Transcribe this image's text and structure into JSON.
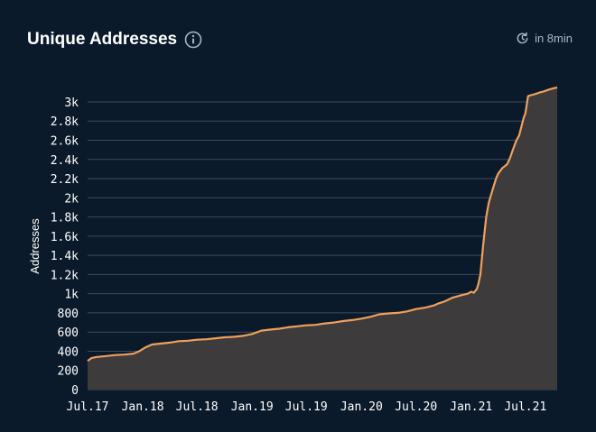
{
  "header": {
    "title": "Unique Addresses",
    "refresh_text": "in 8min"
  },
  "icons": {
    "info": "info-icon",
    "refresh": "refresh-clock-icon"
  },
  "colors": {
    "background": "#0b1a2b",
    "line": "#f0a05c",
    "fill": "#3d3b3b",
    "grid": "#3c4a5c",
    "text": "#ffffff",
    "muted": "#a9b4c2"
  },
  "chart_data": {
    "type": "area",
    "title": "",
    "xlabel": "",
    "ylabel": "Addresses",
    "ylim": [
      0,
      3000
    ],
    "yticks": [
      0,
      200,
      400,
      600,
      800,
      1000,
      1200,
      1400,
      1600,
      1800,
      2000,
      2200,
      2400,
      2600,
      2800,
      3000
    ],
    "ytick_labels": [
      "0",
      "200",
      "400",
      "600",
      "800",
      "1k",
      "1.2k",
      "1.4k",
      "1.6k",
      "1.8k",
      "2k",
      "2.2k",
      "2.4k",
      "2.6k",
      "2.8k",
      "3k"
    ],
    "xticks": [
      "2017-07-01",
      "2018-01-01",
      "2018-07-01",
      "2019-01-01",
      "2019-07-01",
      "2020-01-01",
      "2020-07-01",
      "2021-01-01",
      "2021-07-01"
    ],
    "xtick_labels": [
      "Jul.17",
      "Jan.18",
      "Jul.18",
      "Jan.19",
      "Jul.19",
      "Jan.20",
      "Jul.20",
      "Jan.21",
      "Jul.21"
    ],
    "xlim": [
      "2017-07-01",
      "2021-10-15"
    ],
    "grid": true,
    "series": [
      {
        "x": [
          "2017-07-01",
          "2017-07-15",
          "2017-08-01",
          "2017-09-01",
          "2017-10-01",
          "2017-11-01",
          "2017-12-01",
          "2017-12-20",
          "2018-01-10",
          "2018-02-01",
          "2018-03-01",
          "2018-04-01",
          "2018-05-01",
          "2018-06-01",
          "2018-07-01",
          "2018-08-01",
          "2018-09-01",
          "2018-10-01",
          "2018-11-01",
          "2018-12-01",
          "2019-01-01",
          "2019-02-01",
          "2019-03-01",
          "2019-04-01",
          "2019-05-01",
          "2019-06-01",
          "2019-07-01",
          "2019-08-01",
          "2019-09-01",
          "2019-10-01",
          "2019-11-01",
          "2019-12-01",
          "2020-01-01",
          "2020-02-01",
          "2020-03-01",
          "2020-04-01",
          "2020-05-01",
          "2020-06-01",
          "2020-07-01",
          "2020-08-01",
          "2020-09-01",
          "2020-09-15",
          "2020-10-01",
          "2020-11-01",
          "2020-12-01",
          "2020-12-20",
          "2021-01-01",
          "2021-01-10",
          "2021-01-20",
          "2021-01-25",
          "2021-02-01",
          "2021-02-10",
          "2021-02-20",
          "2021-03-01",
          "2021-03-15",
          "2021-03-25",
          "2021-04-01",
          "2021-04-15",
          "2021-05-01",
          "2021-05-10",
          "2021-05-20",
          "2021-06-01",
          "2021-06-10",
          "2021-06-25",
          "2021-07-01",
          "2021-07-10",
          "2021-07-20",
          "2021-08-01",
          "2021-08-10",
          "2021-08-20",
          "2021-09-01",
          "2021-09-10",
          "2021-09-20",
          "2021-10-01",
          "2021-10-15"
        ],
        "values": [
          300,
          330,
          340,
          350,
          360,
          365,
          375,
          400,
          440,
          470,
          480,
          490,
          505,
          510,
          520,
          525,
          535,
          545,
          550,
          560,
          580,
          615,
          625,
          635,
          650,
          660,
          670,
          675,
          690,
          700,
          715,
          725,
          740,
          760,
          785,
          795,
          800,
          815,
          840,
          855,
          880,
          900,
          915,
          960,
          985,
          1000,
          1020,
          1010,
          1050,
          1100,
          1200,
          1500,
          1800,
          1950,
          2100,
          2200,
          2250,
          2310,
          2350,
          2410,
          2500,
          2600,
          2650,
          2830,
          2880,
          3060,
          3070,
          3080,
          3090,
          3100,
          3110,
          3120,
          3130,
          3140,
          3150
        ]
      }
    ]
  }
}
